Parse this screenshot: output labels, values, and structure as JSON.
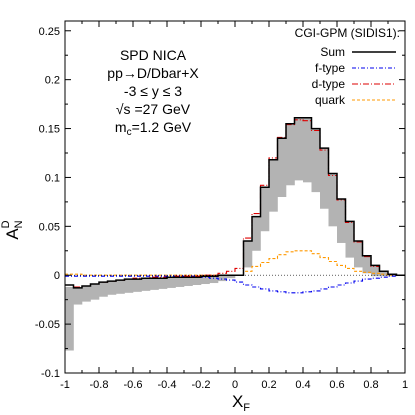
{
  "chart_data": {
    "type": "line",
    "title": "",
    "xlabel": "X",
    "xlabel_sub": "F",
    "ylabel": "A",
    "ylabel_sub": "N",
    "ylabel_sup": "D",
    "xlim": [
      -1,
      1
    ],
    "ylim": [
      -0.1,
      0.26
    ],
    "x_ticks": [
      -1,
      -0.8,
      -0.6,
      -0.4,
      -0.2,
      0,
      0.2,
      0.4,
      0.6,
      0.8,
      1
    ],
    "x_tick_labels": [
      "-1",
      "-0.8",
      "-0.6",
      "-0.4",
      "-0.2",
      "0",
      "0.2",
      "0.4",
      "0.6",
      "0.8",
      "1"
    ],
    "y_ticks": [
      -0.1,
      -0.05,
      0,
      0.05,
      0.1,
      0.15,
      0.2,
      0.25
    ],
    "y_tick_labels": [
      "-0.1",
      "-0.05",
      "0",
      "0.05",
      "0.1",
      "0.15",
      "0.2",
      "0.25"
    ],
    "grid": false,
    "legend_title": "CGI-GPM (SIDIS1):",
    "legend_position": "top-right",
    "annotation_lines": [
      "SPD NICA",
      "pp→D/Dbar+X",
      "-3 ≤ y ≤ 3",
      "√s =27 GeV"
    ],
    "annotation_mass": {
      "base": "m",
      "sub": "c",
      "rest": "=1.2 GeV"
    },
    "bin_edges": [
      -1.0,
      -0.95,
      -0.9,
      -0.85,
      -0.8,
      -0.75,
      -0.7,
      -0.65,
      -0.6,
      -0.55,
      -0.5,
      -0.45,
      -0.4,
      -0.35,
      -0.3,
      -0.25,
      -0.2,
      -0.15,
      -0.1,
      -0.05,
      0.0,
      0.05,
      0.1,
      0.15,
      0.2,
      0.25,
      0.3,
      0.35,
      0.4,
      0.45,
      0.5,
      0.55,
      0.6,
      0.65,
      0.7,
      0.75,
      0.8,
      0.85,
      0.9,
      0.95,
      1.0
    ],
    "band": {
      "color": "#b3b3b3",
      "upper": [
        -0.012,
        -0.013,
        -0.011,
        -0.009,
        -0.007,
        -0.006,
        -0.005,
        -0.004,
        -0.004,
        -0.003,
        -0.003,
        -0.003,
        -0.002,
        -0.002,
        -0.002,
        -0.002,
        -0.001,
        -0.001,
        0.0,
        0.0,
        0.0,
        0.035,
        0.06,
        0.09,
        0.118,
        0.14,
        0.155,
        0.161,
        0.161,
        0.15,
        0.13,
        0.104,
        0.078,
        0.055,
        0.035,
        0.02,
        0.01,
        0.004,
        0.001,
        0.0
      ],
      "lower": [
        -0.077,
        -0.03,
        -0.027,
        -0.025,
        -0.022,
        -0.02,
        -0.019,
        -0.018,
        -0.017,
        -0.016,
        -0.015,
        -0.014,
        -0.013,
        -0.012,
        -0.011,
        -0.01,
        -0.009,
        -0.008,
        -0.006,
        -0.003,
        0.0,
        0.008,
        0.025,
        0.045,
        0.065,
        0.08,
        0.092,
        0.097,
        0.095,
        0.085,
        0.068,
        0.05,
        0.033,
        0.018,
        0.008,
        0.002,
        -0.001,
        -0.001,
        -0.001,
        0.0
      ]
    },
    "series": [
      {
        "name": "Sum",
        "color": "#000000",
        "dash": "",
        "values": [
          -0.01,
          -0.013,
          -0.011,
          -0.009,
          -0.007,
          -0.006,
          -0.005,
          -0.004,
          -0.004,
          -0.003,
          -0.003,
          -0.003,
          -0.002,
          -0.002,
          -0.002,
          -0.002,
          -0.001,
          -0.001,
          0.0,
          0.0,
          0.0,
          0.035,
          0.06,
          0.09,
          0.118,
          0.14,
          0.155,
          0.161,
          0.161,
          0.15,
          0.13,
          0.104,
          0.078,
          0.055,
          0.035,
          0.02,
          0.01,
          0.004,
          0.001,
          0.0
        ]
      },
      {
        "name": "f-type",
        "color": "#0000ee",
        "dash": "4,2,1,2",
        "values": [
          -0.001,
          -0.001,
          -0.001,
          -0.001,
          -0.001,
          -0.001,
          -0.001,
          -0.001,
          -0.001,
          -0.001,
          -0.001,
          -0.001,
          -0.001,
          -0.001,
          -0.001,
          -0.001,
          -0.002,
          -0.003,
          -0.004,
          -0.005,
          -0.007,
          -0.01,
          -0.012,
          -0.014,
          -0.016,
          -0.017,
          -0.018,
          -0.018,
          -0.017,
          -0.016,
          -0.014,
          -0.012,
          -0.01,
          -0.008,
          -0.006,
          -0.004,
          -0.003,
          -0.002,
          -0.001,
          0.0
        ]
      },
      {
        "name": "d-type",
        "color": "#dd0000",
        "dash": "6,2,1,2",
        "values": [
          -0.01,
          -0.012,
          -0.011,
          -0.009,
          -0.007,
          -0.006,
          -0.005,
          -0.004,
          -0.003,
          -0.003,
          -0.002,
          -0.002,
          -0.002,
          -0.001,
          -0.001,
          -0.001,
          0.0,
          0.0,
          0.002,
          0.004,
          0.007,
          0.038,
          0.063,
          0.092,
          0.12,
          0.141,
          0.154,
          0.159,
          0.158,
          0.148,
          0.128,
          0.102,
          0.077,
          0.054,
          0.034,
          0.019,
          0.009,
          0.004,
          0.001,
          0.0
        ]
      },
      {
        "name": "quark",
        "color": "#ff9900",
        "dash": "3,2",
        "values": [
          0.001,
          0.001,
          0.0,
          0.0,
          0.0,
          0.0,
          0.0,
          0.0,
          0.0,
          0.0,
          0.0,
          0.0,
          0.0,
          0.0,
          0.0,
          0.0,
          0.0,
          0.0,
          0.0,
          0.0,
          0.0,
          0.004,
          0.009,
          0.013,
          0.017,
          0.021,
          0.024,
          0.025,
          0.025,
          0.022,
          0.018,
          0.014,
          0.01,
          0.007,
          0.004,
          0.003,
          0.002,
          0.001,
          0.0,
          0.0
        ]
      }
    ]
  }
}
